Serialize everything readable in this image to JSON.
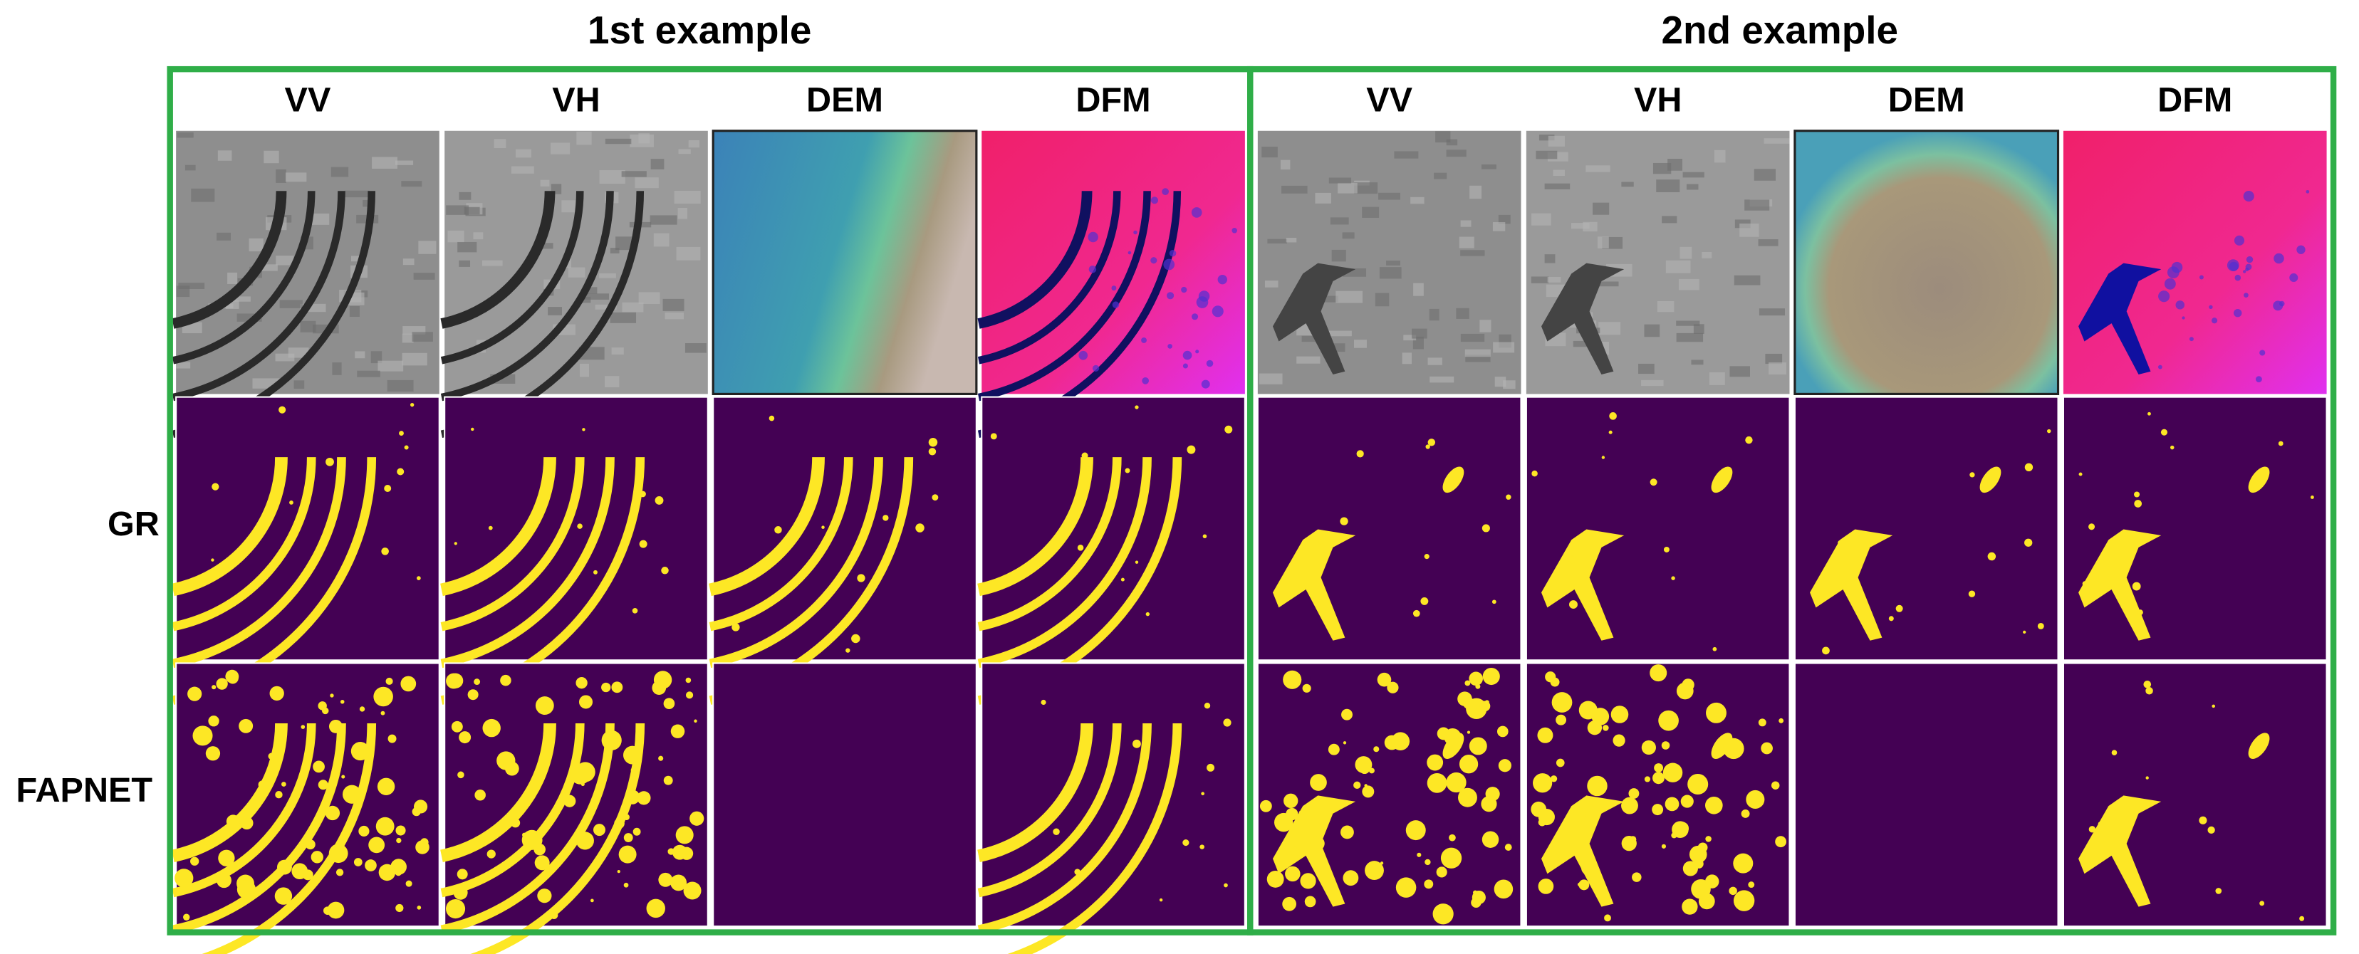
{
  "examples": [
    {
      "title": "1st example",
      "columns": [
        "VV",
        "VH",
        "DEM",
        "DFM"
      ]
    },
    {
      "title": "2nd example",
      "columns": [
        "VV",
        "VH",
        "DEM",
        "DFM"
      ]
    }
  ],
  "row_labels": [
    "GR",
    "FAPNET"
  ]
}
